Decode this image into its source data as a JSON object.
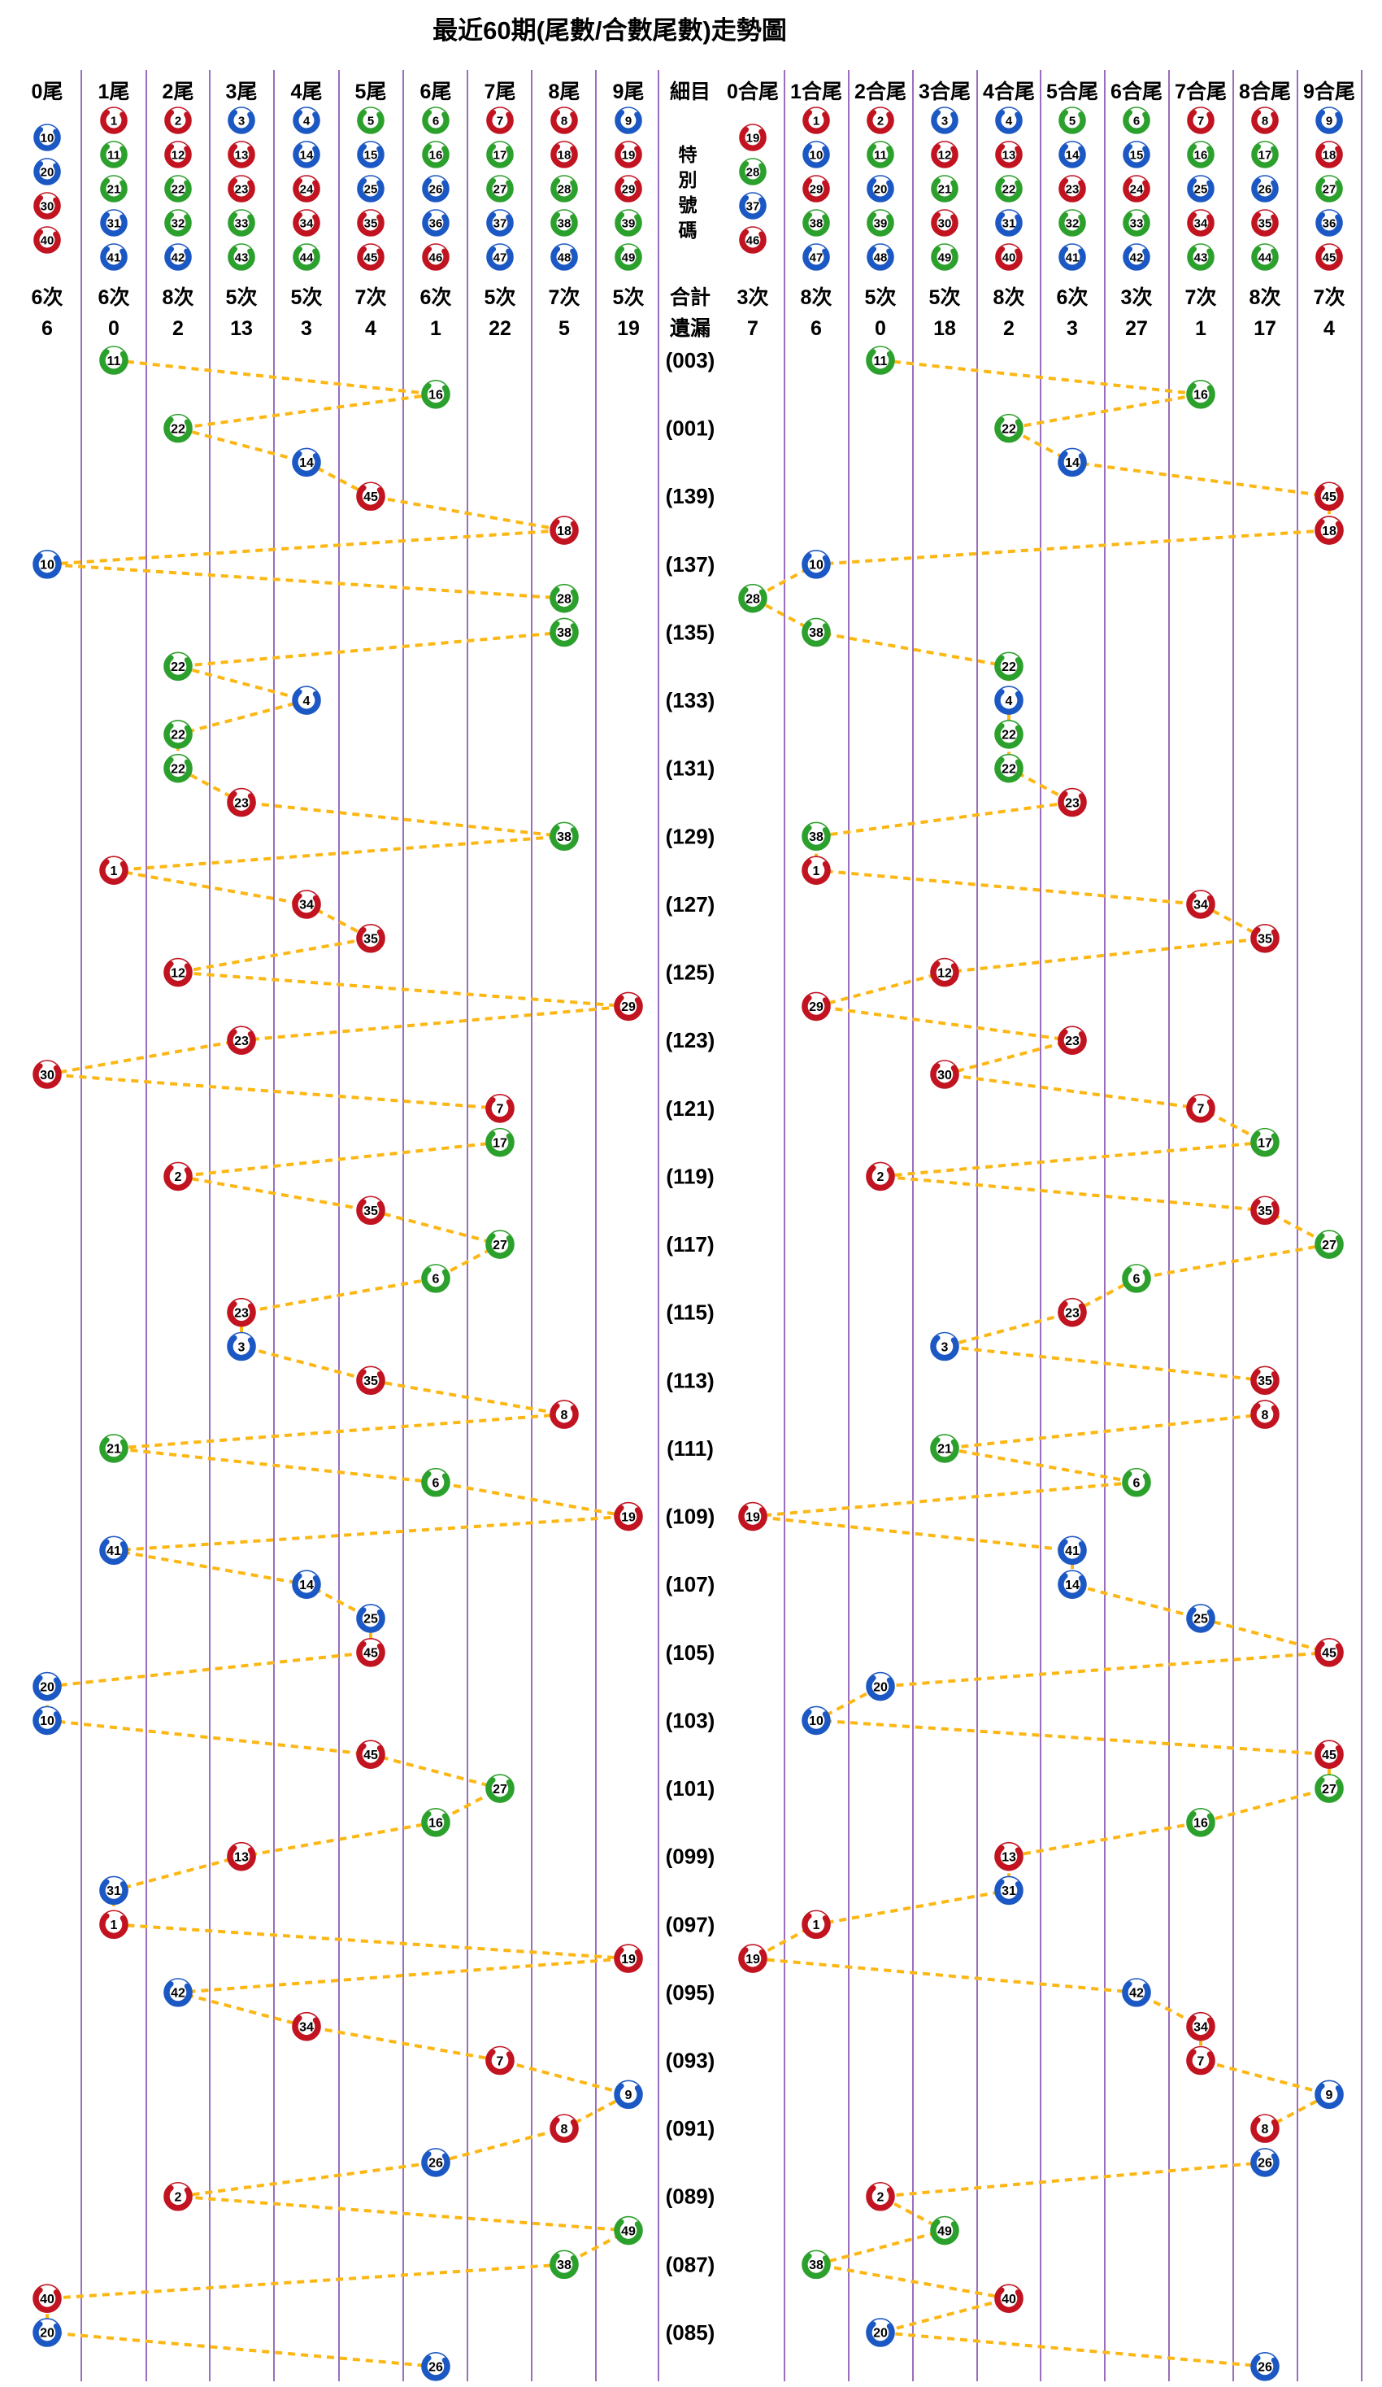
{
  "title": "最近60期(尾數/合數尾數)走勢圖",
  "colors": {
    "red": "#c11320",
    "blue": "#1c58c4",
    "green": "#2ca02c",
    "separator": "#7030a0",
    "connector": "#fcb714",
    "text": "#000000",
    "ball_core": "#ffffff"
  },
  "ball_color_groups": {
    "red": [
      1,
      2,
      7,
      8,
      12,
      13,
      18,
      19,
      23,
      24,
      29,
      30,
      34,
      35,
      40,
      45,
      46
    ],
    "blue": [
      3,
      4,
      9,
      10,
      14,
      15,
      20,
      25,
      26,
      31,
      36,
      37,
      41,
      42,
      47,
      48
    ],
    "green": [
      5,
      6,
      11,
      16,
      17,
      21,
      22,
      27,
      28,
      32,
      33,
      38,
      39,
      43,
      44,
      49
    ]
  },
  "middle": {
    "header": "細目",
    "special_label": "特別號碼",
    "total_label": "合計",
    "miss_label": "遺漏"
  },
  "left_section": {
    "columns": [
      {
        "label": "0尾",
        "balls": [
          10,
          20,
          30,
          40
        ],
        "total": "6次",
        "miss": "6"
      },
      {
        "label": "1尾",
        "balls": [
          1,
          11,
          21,
          31,
          41
        ],
        "total": "6次",
        "miss": "0"
      },
      {
        "label": "2尾",
        "balls": [
          2,
          12,
          22,
          32,
          42
        ],
        "total": "8次",
        "miss": "2"
      },
      {
        "label": "3尾",
        "balls": [
          3,
          13,
          23,
          33,
          43
        ],
        "total": "5次",
        "miss": "13"
      },
      {
        "label": "4尾",
        "balls": [
          4,
          14,
          24,
          34,
          44
        ],
        "total": "5次",
        "miss": "3"
      },
      {
        "label": "5尾",
        "balls": [
          5,
          15,
          25,
          35,
          45
        ],
        "total": "7次",
        "miss": "4"
      },
      {
        "label": "6尾",
        "balls": [
          6,
          16,
          26,
          36,
          46
        ],
        "total": "6次",
        "miss": "1"
      },
      {
        "label": "7尾",
        "balls": [
          7,
          17,
          27,
          37,
          47
        ],
        "total": "5次",
        "miss": "22"
      },
      {
        "label": "8尾",
        "balls": [
          8,
          18,
          28,
          38,
          48
        ],
        "total": "7次",
        "miss": "5"
      },
      {
        "label": "9尾",
        "balls": [
          9,
          19,
          29,
          39,
          49
        ],
        "total": "5次",
        "miss": "19"
      }
    ]
  },
  "right_section": {
    "columns": [
      {
        "label": "0合尾",
        "balls": [
          19,
          28,
          37,
          46
        ],
        "total": "3次",
        "miss": "7"
      },
      {
        "label": "1合尾",
        "balls": [
          1,
          10,
          29,
          38,
          47
        ],
        "total": "8次",
        "miss": "6"
      },
      {
        "label": "2合尾",
        "balls": [
          2,
          11,
          20,
          39,
          48
        ],
        "total": "5次",
        "miss": "0"
      },
      {
        "label": "3合尾",
        "balls": [
          3,
          12,
          21,
          30,
          49
        ],
        "total": "5次",
        "miss": "18"
      },
      {
        "label": "4合尾",
        "balls": [
          4,
          13,
          22,
          31,
          40
        ],
        "total": "8次",
        "miss": "2"
      },
      {
        "label": "5合尾",
        "balls": [
          5,
          14,
          23,
          32,
          41
        ],
        "total": "6次",
        "miss": "3"
      },
      {
        "label": "6合尾",
        "balls": [
          6,
          15,
          24,
          33,
          42
        ],
        "total": "3次",
        "miss": "27"
      },
      {
        "label": "7合尾",
        "balls": [
          7,
          16,
          25,
          34,
          43
        ],
        "total": "7次",
        "miss": "1"
      },
      {
        "label": "8合尾",
        "balls": [
          8,
          17,
          26,
          35,
          44
        ],
        "total": "8次",
        "miss": "17"
      },
      {
        "label": "9合尾",
        "balls": [
          9,
          18,
          27,
          36,
          45
        ],
        "total": "7次",
        "miss": "4"
      }
    ]
  },
  "chart_data": {
    "type": "line",
    "title": "最近60期(尾數/合數尾數)走勢圖",
    "left_axis_categories": [
      "0尾",
      "1尾",
      "2尾",
      "3尾",
      "4尾",
      "5尾",
      "6尾",
      "7尾",
      "8尾",
      "9尾"
    ],
    "right_axis_categories": [
      "0合尾",
      "1合尾",
      "2合尾",
      "3合尾",
      "4合尾",
      "5合尾",
      "6合尾",
      "7合尾",
      "8合尾",
      "9合尾"
    ],
    "note": "Each row = one draw's 特別號碼. Left plot column = number mod 10 (尾數); right plot column = tail of digit sum (合數尾數). Consecutive points joined by dashed connectors.",
    "rows": [
      {
        "period": "(003)",
        "number": 11
      },
      {
        "period": "",
        "number": 16
      },
      {
        "period": "(001)",
        "number": 22
      },
      {
        "period": "",
        "number": 14
      },
      {
        "period": "(139)",
        "number": 45
      },
      {
        "period": "",
        "number": 18
      },
      {
        "period": "(137)",
        "number": 10
      },
      {
        "period": "",
        "number": 28
      },
      {
        "period": "(135)",
        "number": 38
      },
      {
        "period": "",
        "number": 22
      },
      {
        "period": "(133)",
        "number": 4
      },
      {
        "period": "",
        "number": 22
      },
      {
        "period": "(131)",
        "number": 22
      },
      {
        "period": "",
        "number": 23
      },
      {
        "period": "(129)",
        "number": 38
      },
      {
        "period": "",
        "number": 1
      },
      {
        "period": "(127)",
        "number": 34
      },
      {
        "period": "",
        "number": 35
      },
      {
        "period": "(125)",
        "number": 12
      },
      {
        "period": "",
        "number": 29
      },
      {
        "period": "(123)",
        "number": 23
      },
      {
        "period": "",
        "number": 30
      },
      {
        "period": "(121)",
        "number": 7
      },
      {
        "period": "",
        "number": 17
      },
      {
        "period": "(119)",
        "number": 2
      },
      {
        "period": "",
        "number": 35
      },
      {
        "period": "(117)",
        "number": 27
      },
      {
        "period": "",
        "number": 6
      },
      {
        "period": "(115)",
        "number": 23
      },
      {
        "period": "",
        "number": 3
      },
      {
        "period": "(113)",
        "number": 35
      },
      {
        "period": "",
        "number": 8
      },
      {
        "period": "(111)",
        "number": 21
      },
      {
        "period": "",
        "number": 6
      },
      {
        "period": "(109)",
        "number": 19
      },
      {
        "period": "",
        "number": 41
      },
      {
        "period": "(107)",
        "number": 14
      },
      {
        "period": "",
        "number": 25
      },
      {
        "period": "(105)",
        "number": 45
      },
      {
        "period": "",
        "number": 20
      },
      {
        "period": "(103)",
        "number": 10
      },
      {
        "period": "",
        "number": 45
      },
      {
        "period": "(101)",
        "number": 27
      },
      {
        "period": "",
        "number": 16
      },
      {
        "period": "(099)",
        "number": 13
      },
      {
        "period": "",
        "number": 31
      },
      {
        "period": "(097)",
        "number": 1
      },
      {
        "period": "",
        "number": 19
      },
      {
        "period": "(095)",
        "number": 42
      },
      {
        "period": "",
        "number": 34
      },
      {
        "period": "(093)",
        "number": 7
      },
      {
        "period": "",
        "number": 9
      },
      {
        "period": "(091)",
        "number": 8
      },
      {
        "period": "",
        "number": 26
      },
      {
        "period": "(089)",
        "number": 2
      },
      {
        "period": "",
        "number": 49
      },
      {
        "period": "(087)",
        "number": 38
      },
      {
        "period": "",
        "number": 40
      },
      {
        "period": "(085)",
        "number": 20
      },
      {
        "period": "",
        "number": 26
      }
    ]
  }
}
